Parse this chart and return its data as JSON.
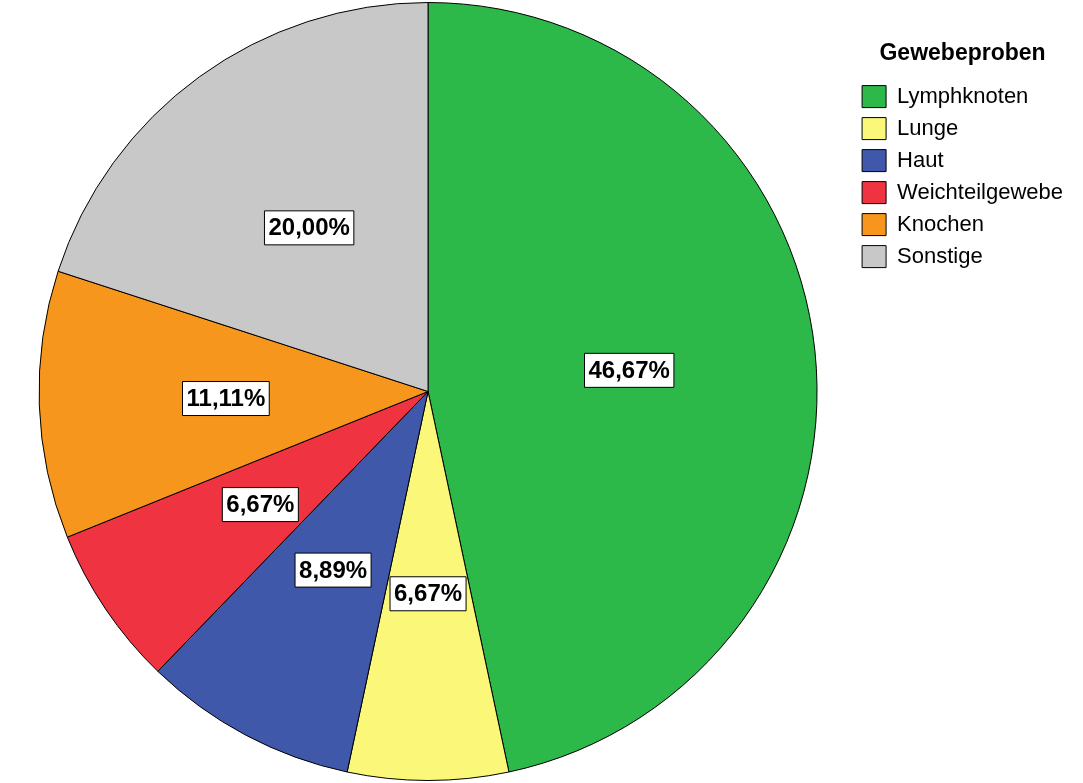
{
  "chart_data": {
    "type": "pie",
    "legend_title": "Gewebeproben",
    "categories": [
      "Lymphknoten",
      "Lunge",
      "Haut",
      "Weichteilgewebe",
      "Knochen",
      "Sonstige"
    ],
    "values": [
      46.67,
      6.67,
      8.89,
      6.67,
      11.11,
      20.0
    ],
    "value_labels": [
      "46,67%",
      "6,67%",
      "8,89%",
      "6,67%",
      "11,11%",
      "20,00%"
    ],
    "colors": [
      "#2db84a",
      "#fbf778",
      "#3f58aa",
      "#ef3340",
      "#f7961d",
      "#c8c8c8"
    ],
    "legend": "top right"
  }
}
